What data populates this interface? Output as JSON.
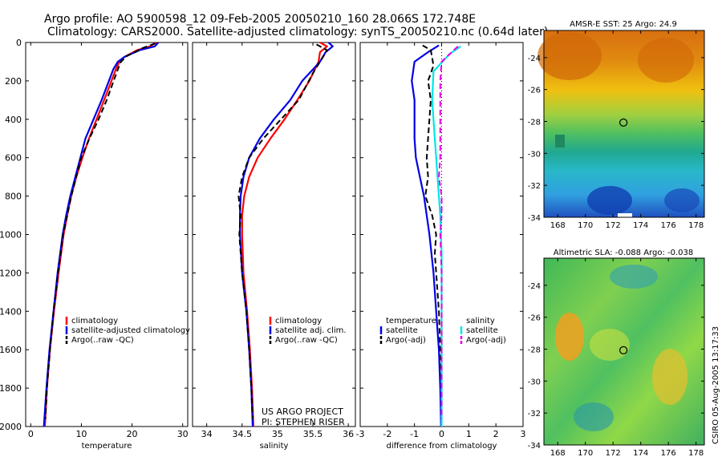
{
  "title": {
    "line1": "Argo profile: AO 5900598_12 09-Feb-2005 20050210_160 28.066S 172.748E",
    "line2": "Climatology: CARS2000. Satellite-adjusted climatology: synTS_20050210.nc (0.64d later)"
  },
  "colors": {
    "red": "#ff0000",
    "blue": "#0000e6",
    "black": "#000000",
    "cyan": "#00e6e6",
    "magenta": "#e600e6"
  },
  "depth_axis": {
    "ylim": [
      0,
      2000
    ],
    "yticks": [
      0,
      200,
      400,
      600,
      800,
      1000,
      1200,
      1400,
      1600,
      1800,
      2000
    ]
  },
  "project_text": {
    "line1": "US ARGO PROJECT",
    "line2": "PI: STEPHEN RISER"
  },
  "footer": "CSIRO 05-Aug-2005 13:17:33",
  "chart_data": [
    {
      "id": "temperature",
      "type": "line",
      "xlabel": "temperature",
      "xlim": [
        -1,
        31
      ],
      "xticks": [
        0,
        10,
        20,
        30
      ],
      "legend": [
        "climatology",
        "satellite-adjusted climatology",
        "Argo(..raw -QC)"
      ],
      "series": [
        {
          "name": "climatology",
          "color": "#ff0000",
          "dash": false,
          "points": [
            [
              24.8,
              0
            ],
            [
              23.5,
              20
            ],
            [
              21,
              40
            ],
            [
              18.5,
              75
            ],
            [
              17.5,
              100
            ],
            [
              16.8,
              140
            ],
            [
              14.5,
              300
            ],
            [
              13,
              400
            ],
            [
              11.5,
              500
            ],
            [
              10.2,
              600
            ],
            [
              9,
              700
            ],
            [
              8,
              800
            ],
            [
              7.2,
              900
            ],
            [
              6.5,
              1000
            ],
            [
              5.5,
              1200
            ],
            [
              4.6,
              1400
            ],
            [
              3.8,
              1600
            ],
            [
              3.2,
              1800
            ],
            [
              2.8,
              2000
            ]
          ]
        },
        {
          "name": "satellite-adjusted climatology",
          "color": "#0000e6",
          "dash": false,
          "points": [
            [
              25.2,
              0
            ],
            [
              24.5,
              20
            ],
            [
              21.5,
              40
            ],
            [
              18.5,
              75
            ],
            [
              17.2,
              100
            ],
            [
              16.3,
              140
            ],
            [
              14,
              300
            ],
            [
              12.4,
              400
            ],
            [
              10.8,
              500
            ],
            [
              9.8,
              600
            ],
            [
              8.8,
              700
            ],
            [
              7.8,
              800
            ],
            [
              7,
              900
            ],
            [
              6.3,
              1000
            ],
            [
              5.3,
              1200
            ],
            [
              4.5,
              1400
            ],
            [
              3.7,
              1600
            ],
            [
              3.1,
              1800
            ],
            [
              2.6,
              2000
            ]
          ]
        },
        {
          "name": "Argo(..raw -QC)",
          "color": "#000000",
          "dash": true,
          "points": [
            [
              24.6,
              5
            ],
            [
              22,
              30
            ],
            [
              19,
              70
            ],
            [
              17.8,
              100
            ],
            [
              17.2,
              140
            ],
            [
              15,
              300
            ],
            [
              13.4,
              400
            ],
            [
              11.6,
              500
            ],
            [
              10,
              600
            ],
            [
              9,
              700
            ],
            [
              8,
              800
            ],
            [
              7.2,
              900
            ],
            [
              6.4,
              1000
            ],
            [
              5.4,
              1200
            ],
            [
              4.5,
              1400
            ],
            [
              3.8,
              1600
            ],
            [
              3.2,
              1800
            ],
            [
              2.9,
              1960
            ]
          ]
        }
      ]
    },
    {
      "id": "salinity",
      "type": "line",
      "xlabel": "salinity",
      "xlim": [
        33.8,
        36.1
      ],
      "xticks": [
        34,
        34.5,
        35,
        35.5,
        36
      ],
      "legend": [
        "climatology",
        "satellite adj. clim.",
        "Argo(..raw -QC)"
      ],
      "series": [
        {
          "name": "climatology",
          "color": "#ff0000",
          "dash": false,
          "points": [
            [
              35.6,
              0
            ],
            [
              35.7,
              20
            ],
            [
              35.6,
              50
            ],
            [
              35.58,
              100
            ],
            [
              35.45,
              200
            ],
            [
              35.28,
              300
            ],
            [
              35.1,
              400
            ],
            [
              34.9,
              500
            ],
            [
              34.72,
              600
            ],
            [
              34.6,
              700
            ],
            [
              34.53,
              800
            ],
            [
              34.5,
              900
            ],
            [
              34.5,
              1000
            ],
            [
              34.52,
              1200
            ],
            [
              34.57,
              1400
            ],
            [
              34.61,
              1600
            ],
            [
              34.64,
              1800
            ],
            [
              34.66,
              2000
            ]
          ]
        },
        {
          "name": "satellite adj. clim.",
          "color": "#0000e6",
          "dash": false,
          "points": [
            [
              35.72,
              0
            ],
            [
              35.78,
              20
            ],
            [
              35.68,
              50
            ],
            [
              35.6,
              100
            ],
            [
              35.35,
              200
            ],
            [
              35.18,
              300
            ],
            [
              34.95,
              400
            ],
            [
              34.75,
              500
            ],
            [
              34.6,
              600
            ],
            [
              34.52,
              700
            ],
            [
              34.48,
              800
            ],
            [
              34.47,
              900
            ],
            [
              34.47,
              1000
            ],
            [
              34.5,
              1200
            ],
            [
              34.56,
              1400
            ],
            [
              34.6,
              1600
            ],
            [
              34.63,
              1800
            ],
            [
              34.65,
              2000
            ]
          ]
        },
        {
          "name": "Argo(..raw -QC)",
          "color": "#000000",
          "dash": true,
          "points": [
            [
              35.55,
              10
            ],
            [
              35.7,
              40
            ],
            [
              35.6,
              100
            ],
            [
              35.5,
              160
            ],
            [
              35.3,
              300
            ],
            [
              35.05,
              400
            ],
            [
              34.8,
              500
            ],
            [
              34.6,
              600
            ],
            [
              34.5,
              700
            ],
            [
              34.45,
              800
            ],
            [
              34.48,
              900
            ],
            [
              34.46,
              1000
            ],
            [
              34.5,
              1200
            ],
            [
              34.56,
              1400
            ],
            [
              34.6,
              1600
            ],
            [
              34.63,
              1800
            ],
            [
              34.65,
              1960
            ]
          ]
        }
      ]
    },
    {
      "id": "difference",
      "type": "line",
      "xlabel": "difference from climatology",
      "xlim": [
        -3,
        3
      ],
      "xticks": [
        -3,
        -2,
        -1,
        0,
        1,
        2,
        3
      ],
      "legend_left": [
        "temperature",
        "satellite",
        "Argo(-adj)"
      ],
      "legend_right": [
        "salinity",
        "satellite",
        "Argo(-adj)"
      ],
      "series": [
        {
          "name": "temperature satellite",
          "color": "#0000e6",
          "dash": false,
          "points": [
            [
              -0.1,
              15
            ],
            [
              -0.5,
              50
            ],
            [
              -1.0,
              100
            ],
            [
              -1.1,
              200
            ],
            [
              -1.0,
              300
            ],
            [
              -1.0,
              400
            ],
            [
              -1.0,
              500
            ],
            [
              -0.95,
              600
            ],
            [
              -0.8,
              700
            ],
            [
              -0.65,
              800
            ],
            [
              -0.55,
              900
            ],
            [
              -0.45,
              1000
            ],
            [
              -0.3,
              1200
            ],
            [
              -0.2,
              1400
            ],
            [
              -0.1,
              1600
            ],
            [
              -0.05,
              1800
            ],
            [
              -0.02,
              2000
            ]
          ]
        },
        {
          "name": "temperature Argo(-adj)",
          "color": "#000000",
          "dash": true,
          "points": [
            [
              -0.7,
              15
            ],
            [
              -0.4,
              40
            ],
            [
              -0.3,
              120
            ],
            [
              -0.5,
              200
            ],
            [
              -0.4,
              300
            ],
            [
              -0.45,
              400
            ],
            [
              -0.5,
              500
            ],
            [
              -0.55,
              600
            ],
            [
              -0.5,
              700
            ],
            [
              -0.6,
              800
            ],
            [
              -0.35,
              900
            ],
            [
              -0.2,
              1000
            ],
            [
              -0.25,
              1100
            ],
            [
              -0.2,
              1200
            ],
            [
              -0.1,
              1400
            ],
            [
              -0.05,
              1600
            ],
            [
              0.0,
              1800
            ],
            [
              0.0,
              1960
            ]
          ]
        },
        {
          "name": "salinity satellite",
          "color": "#00e6e6",
          "dash": false,
          "points": [
            [
              0.7,
              20
            ],
            [
              0.3,
              60
            ],
            [
              -0.3,
              150
            ],
            [
              -0.35,
              300
            ],
            [
              -0.25,
              500
            ],
            [
              -0.15,
              700
            ],
            [
              -0.05,
              900
            ],
            [
              0.0,
              1100
            ],
            [
              0.0,
              1500
            ],
            [
              0.0,
              2000
            ]
          ]
        },
        {
          "name": "salinity Argo(-adj)",
          "color": "#e600e6",
          "dash": true,
          "points": [
            [
              0.6,
              20
            ],
            [
              0.3,
              60
            ],
            [
              0.0,
              100
            ],
            [
              -0.05,
              200
            ],
            [
              -0.05,
              300
            ],
            [
              -0.05,
              400
            ],
            [
              -0.05,
              500
            ],
            [
              -0.05,
              600
            ],
            [
              -0.1,
              700
            ],
            [
              0.0,
              800
            ],
            [
              0.0,
              900
            ],
            [
              -0.05,
              1000
            ],
            [
              0.0,
              1200
            ],
            [
              0.0,
              1400
            ],
            [
              0.0,
              1600
            ],
            [
              0.0,
              1800
            ],
            [
              0.0,
              1960
            ]
          ]
        }
      ]
    },
    {
      "id": "sst_map",
      "type": "heatmap",
      "title": "AMSR-E SST: 25 Argo: 24.9",
      "xticks": [
        168,
        170,
        172,
        174,
        176,
        178
      ],
      "yticks": [
        -24,
        -26,
        -28,
        -30,
        -32,
        -34
      ],
      "xlim": [
        167,
        178.6
      ],
      "ylim": [
        -34,
        -22.3
      ],
      "marker": [
        172.75,
        -28.07
      ]
    },
    {
      "id": "sla_map",
      "type": "heatmap",
      "title": "Altimetric SLA: -0.088 Argo: -0.038",
      "xticks": [
        168,
        170,
        172,
        174,
        176,
        178
      ],
      "yticks": [
        -24,
        -26,
        -28,
        -30,
        -32,
        -34
      ],
      "xlim": [
        167,
        178.6
      ],
      "ylim": [
        -34,
        -22.3
      ],
      "marker": [
        172.75,
        -28.07
      ]
    }
  ]
}
